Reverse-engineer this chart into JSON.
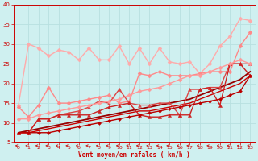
{
  "xlabel": "Vent moyen/en rafales ( km/h )",
  "xlim": [
    -0.5,
    23.5
  ],
  "ylim": [
    5,
    40
  ],
  "yticks": [
    5,
    10,
    15,
    20,
    25,
    30,
    35,
    40
  ],
  "xticks": [
    0,
    1,
    2,
    3,
    4,
    5,
    6,
    7,
    8,
    9,
    10,
    11,
    12,
    13,
    14,
    15,
    16,
    17,
    18,
    19,
    20,
    21,
    22,
    23
  ],
  "bg_color": "#cff0f0",
  "grid_color": "#aadddd",
  "lines": [
    {
      "x": [
        0,
        1,
        2,
        3,
        4,
        5,
        6,
        7,
        8,
        9,
        10,
        11,
        12,
        13,
        14,
        15,
        16,
        17,
        18,
        19,
        20,
        21,
        22,
        23
      ],
      "y": [
        14.5,
        30,
        29,
        27,
        28.5,
        28,
        26,
        29,
        26,
        26,
        29.5,
        25,
        29,
        25,
        29,
        25.5,
        25,
        25.5,
        22.5,
        25,
        29.5,
        32,
        36.5,
        36
      ],
      "color": "#ffaaaa",
      "lw": 1.0,
      "marker": "D",
      "ms": 2.5
    },
    {
      "x": [
        0,
        1,
        2,
        3,
        4,
        5,
        6,
        7,
        8,
        9,
        10,
        11,
        12,
        13,
        14,
        15,
        16,
        17,
        18,
        19,
        20,
        21,
        22,
        23
      ],
      "y": [
        14,
        11.5,
        14.5,
        19,
        15,
        15,
        15.5,
        16,
        16.5,
        17,
        15,
        15.5,
        22.5,
        22,
        23,
        22,
        22,
        22,
        22.5,
        23,
        23,
        23,
        29.5,
        33
      ],
      "color": "#ff8888",
      "lw": 1.0,
      "marker": "D",
      "ms": 2.5
    },
    {
      "x": [
        0,
        1,
        2,
        3,
        4,
        5,
        6,
        7,
        8,
        9,
        10,
        11,
        12,
        13,
        14,
        15,
        16,
        17,
        18,
        19,
        20,
        21,
        22,
        23
      ],
      "y": [
        7.5,
        7.5,
        11,
        11,
        12,
        12.5,
        13,
        14,
        15.5,
        15,
        18.5,
        15,
        14.5,
        14.5,
        15,
        15,
        12,
        18.5,
        18.5,
        19,
        19,
        25,
        25,
        25
      ],
      "color": "#dd4444",
      "lw": 1.0,
      "marker": "^",
      "ms": 3.0
    },
    {
      "x": [
        0,
        1,
        2,
        3,
        4,
        5,
        6,
        7,
        8,
        9,
        10,
        11,
        12,
        13,
        14,
        15,
        16,
        17,
        18,
        19,
        20,
        21,
        22,
        23
      ],
      "y": [
        7.5,
        7.5,
        11,
        11,
        12,
        12,
        12,
        12,
        13,
        14,
        14.5,
        15,
        12,
        11.5,
        11.5,
        12,
        12,
        12,
        18.5,
        19,
        14.5,
        25,
        25,
        22
      ],
      "color": "#cc2222",
      "lw": 1.0,
      "marker": "^",
      "ms": 3.0
    },
    {
      "x": [
        0,
        1,
        2,
        3,
        4,
        5,
        6,
        7,
        8,
        9,
        10,
        11,
        12,
        13,
        14,
        15,
        16,
        17,
        18,
        19,
        20,
        21,
        22,
        23
      ],
      "y": [
        7.5,
        7.5,
        7.5,
        7.5,
        8,
        8.5,
        9,
        9.5,
        10,
        10.5,
        11,
        11.5,
        12,
        12.5,
        13,
        13.5,
        14,
        14.5,
        15,
        15.5,
        16,
        17,
        18,
        22
      ],
      "color": "#bb0000",
      "lw": 1.0,
      "marker": "D",
      "ms": 2.0
    },
    {
      "x": [
        0,
        1,
        2,
        3,
        4,
        5,
        6,
        7,
        8,
        9,
        10,
        11,
        12,
        13,
        14,
        15,
        16,
        17,
        18,
        19,
        20,
        21,
        22,
        23
      ],
      "y": [
        7.5,
        8,
        8.5,
        9,
        9.5,
        10,
        10.5,
        11,
        11.5,
        12,
        12.5,
        13,
        13.5,
        14,
        14.5,
        15,
        15.5,
        16,
        17,
        18,
        19,
        20,
        21,
        23
      ],
      "color": "#990000",
      "lw": 1.3,
      "marker": null,
      "ms": 0
    },
    {
      "x": [
        0,
        1,
        2,
        3,
        4,
        5,
        6,
        7,
        8,
        9,
        10,
        11,
        12,
        13,
        14,
        15,
        16,
        17,
        18,
        19,
        20,
        21,
        22,
        23
      ],
      "y": [
        7.5,
        7.5,
        8,
        8.5,
        9,
        9.5,
        10,
        10.5,
        11,
        11.5,
        12,
        12.5,
        13,
        13,
        13.5,
        14,
        14.5,
        15,
        16,
        17,
        18,
        19,
        20,
        22
      ],
      "color": "#cc0000",
      "lw": 1.0,
      "marker": null,
      "ms": 0
    },
    {
      "x": [
        0,
        1,
        2,
        3,
        4,
        5,
        6,
        7,
        8,
        9,
        10,
        11,
        12,
        13,
        14,
        15,
        16,
        17,
        18,
        19,
        20,
        21,
        22,
        23
      ],
      "y": [
        11,
        11,
        12,
        12.5,
        13,
        13.5,
        14,
        14.5,
        15,
        15.5,
        16,
        17,
        18,
        18.5,
        19,
        20,
        21,
        22,
        22,
        23,
        24,
        25,
        26,
        25
      ],
      "color": "#ff9999",
      "lw": 1.0,
      "marker": "D",
      "ms": 2.5
    }
  ],
  "arrow_color": "#cc2222"
}
